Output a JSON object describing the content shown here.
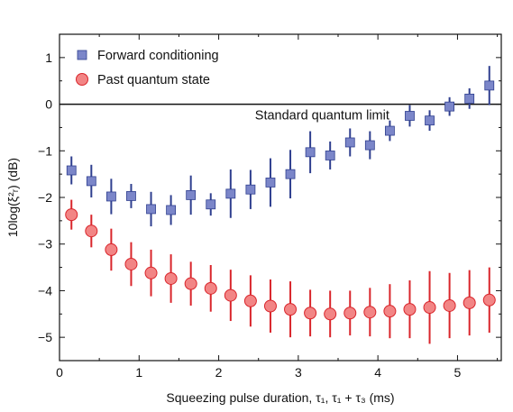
{
  "chart_data": {
    "type": "scatter",
    "xlabel": "Squeezing pulse duration, τ₁, τ₁ + τ₃ (ms)",
    "ylabel": "10log(ξ²ᵣ) (dB)",
    "xlim": [
      0,
      5.55
    ],
    "ylim": [
      -5.5,
      1.5
    ],
    "xticks": [
      0,
      1,
      2,
      3,
      4,
      5
    ],
    "yticks": [
      -5,
      -4,
      -3,
      -2,
      -1,
      0,
      1
    ],
    "grid": false,
    "legend_position": "top-left",
    "reference_line": {
      "y": 0,
      "label": "Standard quantum limit"
    },
    "series": [
      {
        "name": "Forward conditioning",
        "marker": "square",
        "color": "#7b86c9",
        "error_color": "#2f3f8f",
        "x": [
          0.15,
          0.4,
          0.65,
          0.9,
          1.15,
          1.4,
          1.65,
          1.9,
          2.15,
          2.4,
          2.65,
          2.9,
          3.15,
          3.4,
          3.65,
          3.9,
          4.15,
          4.4,
          4.65,
          4.9,
          5.15,
          5.4
        ],
        "y": [
          -1.42,
          -1.65,
          -1.98,
          -1.97,
          -2.25,
          -2.27,
          -1.95,
          -2.15,
          -1.92,
          -1.83,
          -1.68,
          -1.5,
          -1.03,
          -1.1,
          -0.82,
          -0.88,
          -0.57,
          -0.25,
          -0.35,
          -0.05,
          0.12,
          0.4
        ],
        "err_low": [
          0.3,
          0.35,
          0.38,
          0.26,
          0.37,
          0.32,
          0.42,
          0.24,
          0.52,
          0.42,
          0.52,
          0.52,
          0.45,
          0.3,
          0.3,
          0.3,
          0.22,
          0.23,
          0.22,
          0.2,
          0.22,
          0.42
        ],
        "err_high": [
          0.3,
          0.35,
          0.38,
          0.26,
          0.37,
          0.32,
          0.42,
          0.24,
          0.52,
          0.42,
          0.52,
          0.52,
          0.45,
          0.3,
          0.3,
          0.3,
          0.22,
          0.23,
          0.22,
          0.2,
          0.22,
          0.42
        ]
      },
      {
        "name": "Past quantum state",
        "marker": "circle",
        "color": "#f28585",
        "error_color": "#d9252b",
        "x": [
          0.15,
          0.4,
          0.65,
          0.9,
          1.15,
          1.4,
          1.65,
          1.9,
          2.15,
          2.4,
          2.65,
          2.9,
          3.15,
          3.4,
          3.65,
          3.9,
          4.15,
          4.4,
          4.65,
          4.9,
          5.15,
          5.4
        ],
        "y": [
          -2.37,
          -2.72,
          -3.12,
          -3.43,
          -3.62,
          -3.74,
          -3.85,
          -3.95,
          -4.1,
          -4.22,
          -4.33,
          -4.4,
          -4.48,
          -4.5,
          -4.48,
          -4.46,
          -4.44,
          -4.4,
          -4.36,
          -4.32,
          -4.26,
          -4.2
        ],
        "err_low": [
          0.32,
          0.35,
          0.45,
          0.47,
          0.5,
          0.52,
          0.47,
          0.5,
          0.55,
          0.55,
          0.57,
          0.6,
          0.5,
          0.5,
          0.48,
          0.52,
          0.58,
          0.62,
          0.78,
          0.7,
          0.7,
          0.7
        ],
        "err_high": [
          0.32,
          0.35,
          0.45,
          0.47,
          0.5,
          0.52,
          0.47,
          0.5,
          0.55,
          0.55,
          0.57,
          0.6,
          0.5,
          0.5,
          0.48,
          0.52,
          0.58,
          0.62,
          0.78,
          0.7,
          0.7,
          0.7
        ]
      }
    ]
  }
}
